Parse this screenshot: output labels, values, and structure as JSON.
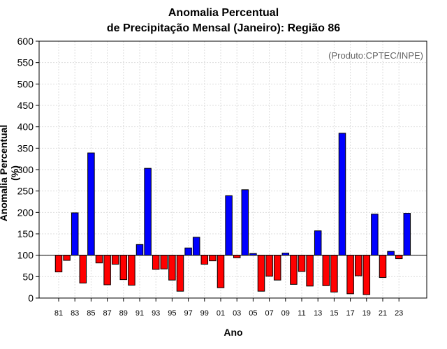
{
  "chart_data": {
    "type": "bar",
    "title_line1": "Anomalia Percentual",
    "title_line2": "de Precipitação Mensal (Janeiro): Região 86",
    "credit": "(Produto:CPTEC/INPE)",
    "xlabel": "Ano",
    "ylabel": "Anomalia Percentual (%)",
    "ylim": [
      0,
      600
    ],
    "yticks": [
      0,
      50,
      100,
      150,
      200,
      250,
      300,
      350,
      400,
      450,
      500,
      550,
      600
    ],
    "baseline": 100,
    "grid": true,
    "colors": {
      "above": "#0000ff",
      "below": "#ff0000"
    },
    "categories": [
      "81",
      "82",
      "83",
      "84",
      "85",
      "86",
      "87",
      "88",
      "89",
      "90",
      "91",
      "92",
      "93",
      "94",
      "95",
      "96",
      "97",
      "98",
      "99",
      "00",
      "01",
      "02",
      "03",
      "04",
      "05",
      "06",
      "07",
      "08",
      "09",
      "10",
      "11",
      "12",
      "13",
      "14",
      "15",
      "16",
      "17",
      "18",
      "19",
      "20",
      "21",
      "22",
      "23",
      "24"
    ],
    "xtick_labels": [
      "81",
      "83",
      "85",
      "87",
      "89",
      "91",
      "93",
      "95",
      "97",
      "99",
      "01",
      "03",
      "05",
      "07",
      "09",
      "11",
      "13",
      "15",
      "17",
      "19",
      "21",
      "23"
    ],
    "values": [
      61,
      88,
      199,
      35,
      339,
      82,
      31,
      79,
      43,
      30,
      125,
      303,
      67,
      68,
      42,
      16,
      117,
      142,
      79,
      87,
      24,
      239,
      94,
      253,
      104,
      16,
      51,
      42,
      105,
      32,
      62,
      28,
      157,
      29,
      14,
      385,
      10,
      52,
      8,
      196,
      48,
      109,
      92,
      198
    ]
  }
}
